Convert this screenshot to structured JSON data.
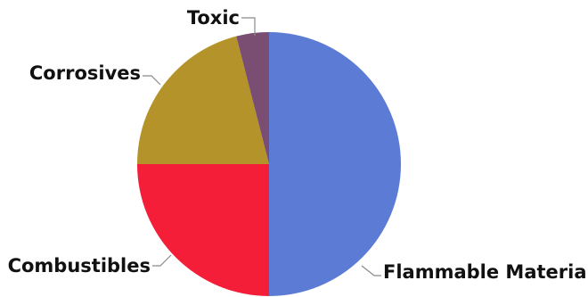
{
  "chart_data": {
    "type": "pie",
    "title": "",
    "slices": [
      {
        "label": "Flammable Material",
        "value": 50,
        "color": "#5B7BD5"
      },
      {
        "label": "Combustibles",
        "value": 25,
        "color": "#F41E39"
      },
      {
        "label": "Corrosives",
        "value": 21,
        "color": "#B4942A"
      },
      {
        "label": "Toxic",
        "value": 4,
        "color": "#7A4E72"
      }
    ],
    "start_angle_deg": 0,
    "direction": "clockwise",
    "legend": "none",
    "labels": "outside with leader lines"
  }
}
